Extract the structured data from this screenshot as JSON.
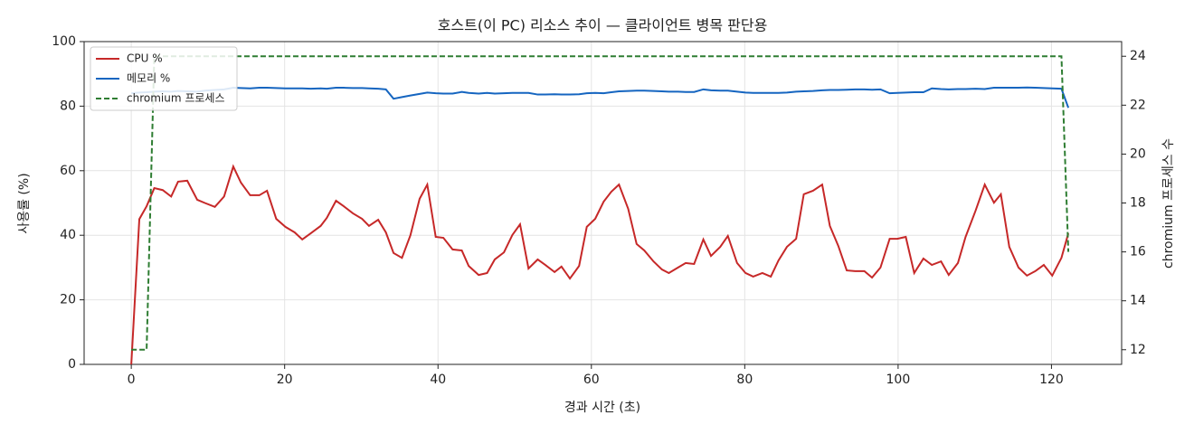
{
  "chart_data": {
    "type": "line",
    "title": "호스트(이 PC) 리소스 추이 — 클라이언트 병목 판단용",
    "x_label": "경과 시간 (초)",
    "y_label": "사용률 (%)",
    "y2_label": "chromium 프로세스 수",
    "xlim": [
      -6.15,
      129.15
    ],
    "xticks": [
      0,
      20,
      40,
      60,
      80,
      100,
      120
    ],
    "ylim": [
      0,
      100
    ],
    "yticks": [
      0,
      20,
      40,
      60,
      80,
      100
    ],
    "y2lim": [
      11.4,
      24.6
    ],
    "y2ticks": [
      12,
      14,
      16,
      18,
      20,
      22,
      24
    ],
    "grid": true,
    "legend": "upper left",
    "x": [
      0,
      1.05,
      2,
      3,
      4.1,
      5.2,
      6.1,
      7.3,
      8.6,
      9.6,
      10.9,
      12.1,
      13.3,
      14.3,
      15.5,
      16.7,
      17.7,
      18.9,
      20.1,
      21.3,
      22.3,
      23.4,
      24.7,
      25.5,
      26.7,
      27.7,
      28.9,
      30.1,
      31,
      32.2,
      33.2,
      34.2,
      35.3,
      36.4,
      37.6,
      38.6,
      39.7,
      40.7,
      41.9,
      43.1,
      44,
      45.3,
      46.4,
      47.4,
      48.6,
      49.7,
      50.7,
      51.8,
      53,
      54,
      55.2,
      56.1,
      57.2,
      58.4,
      59.4,
      60.5,
      61.6,
      62.6,
      63.6,
      64.8,
      65.9,
      66.9,
      68.1,
      69.2,
      70.1,
      71.3,
      72.3,
      73.4,
      74.6,
      75.6,
      76.8,
      77.8,
      79,
      80.1,
      81.1,
      82.3,
      83.4,
      84.4,
      85.5,
      86.7,
      87.7,
      88.9,
      90.1,
      91.1,
      92.2,
      93.3,
      94.4,
      95.6,
      96.6,
      97.7,
      98.9,
      99.9,
      101,
      102.1,
      103.3,
      104.4,
      105.6,
      106.6,
      107.8,
      108.8,
      110.1,
      111.3,
      112.5,
      113.4,
      114.5,
      115.7,
      116.8,
      117.9,
      119,
      120.1,
      121.3,
      122.2
    ],
    "series": [
      {
        "name": "CPU %",
        "color": "#c62828",
        "axis": "y",
        "values": [
          0,
          45,
          49,
          54.6,
          54,
          52,
          56.6,
          56.9,
          51,
          50,
          48.8,
          52,
          61.3,
          56.3,
          52.4,
          52.4,
          53.8,
          45.1,
          42.6,
          40.9,
          38.7,
          40.6,
          42.9,
          45.4,
          50.7,
          49,
          46.8,
          45.1,
          42.9,
          44.8,
          40.9,
          34.5,
          33,
          40,
          51.3,
          55.7,
          39.5,
          39.2,
          35.6,
          35.3,
          30.5,
          27.7,
          28.3,
          32.5,
          34.7,
          40.1,
          43.4,
          29.7,
          32.5,
          30.8,
          28.6,
          30.3,
          26.6,
          30.5,
          42.6,
          45.1,
          50.4,
          53.5,
          55.7,
          48.2,
          37.3,
          35.3,
          31.9,
          29.4,
          28.3,
          30,
          31.4,
          31.1,
          38.7,
          33.6,
          36.4,
          39.8,
          31.4,
          28.3,
          27.2,
          28.3,
          27.2,
          32.2,
          36.4,
          38.9,
          52.7,
          53.8,
          55.7,
          42.9,
          36.7,
          29.1,
          28.9,
          28.9,
          26.9,
          30,
          38.9,
          38.9,
          39.5,
          28.3,
          32.8,
          30.8,
          31.9,
          27.7,
          31.4,
          39.5,
          47.6,
          55.7,
          50.1,
          52.7,
          36.4,
          30,
          27.5,
          28.9,
          30.8,
          27.5,
          33,
          40.6
        ]
      },
      {
        "name": "메모리 %",
        "color": "#1565c0",
        "axis": "y",
        "values": [
          84,
          84.2,
          84.3,
          84.5,
          84.6,
          84.5,
          84.7,
          84.6,
          84.5,
          84.8,
          85,
          85.2,
          85.7,
          85.6,
          85.5,
          85.7,
          85.7,
          85.6,
          85.5,
          85.5,
          85.5,
          85.4,
          85.5,
          85.4,
          85.7,
          85.7,
          85.6,
          85.6,
          85.5,
          85.4,
          85.2,
          82.3,
          82.8,
          83.3,
          83.8,
          84.2,
          84,
          83.9,
          83.9,
          84.4,
          84.1,
          83.9,
          84.1,
          83.9,
          84,
          84.1,
          84.1,
          84.1,
          83.6,
          83.6,
          83.7,
          83.6,
          83.6,
          83.7,
          84,
          84.1,
          84,
          84.3,
          84.6,
          84.7,
          84.8,
          84.8,
          84.7,
          84.6,
          84.5,
          84.5,
          84.4,
          84.4,
          85.2,
          84.9,
          84.8,
          84.8,
          84.5,
          84.2,
          84.1,
          84.1,
          84.1,
          84.1,
          84.2,
          84.5,
          84.6,
          84.7,
          84.9,
          85,
          85,
          85.1,
          85.2,
          85.2,
          85.1,
          85.2,
          84,
          84.1,
          84.2,
          84.3,
          84.3,
          85.5,
          85.3,
          85.2,
          85.3,
          85.3,
          85.4,
          85.3,
          85.7,
          85.7,
          85.7,
          85.7,
          85.8,
          85.7,
          85.6,
          85.5,
          85.4,
          79.5
        ]
      },
      {
        "name": "chromium 프로세스",
        "color": "#2e7d32",
        "axis": "y2",
        "dashed": true,
        "values": [
          12,
          12,
          12,
          24,
          24,
          24,
          24,
          24,
          24,
          24,
          24,
          24,
          24,
          24,
          24,
          24,
          24,
          24,
          24,
          24,
          24,
          24,
          24,
          24,
          24,
          24,
          24,
          24,
          24,
          24,
          24,
          24,
          24,
          24,
          24,
          24,
          24,
          24,
          24,
          24,
          24,
          24,
          24,
          24,
          24,
          24,
          24,
          24,
          24,
          24,
          24,
          24,
          24,
          24,
          24,
          24,
          24,
          24,
          24,
          24,
          24,
          24,
          24,
          24,
          24,
          24,
          24,
          24,
          24,
          24,
          24,
          24,
          24,
          24,
          24,
          24,
          24,
          24,
          24,
          24,
          24,
          24,
          24,
          24,
          24,
          24,
          24,
          24,
          24,
          24,
          24,
          24,
          24,
          24,
          24,
          24,
          24,
          24,
          24,
          24,
          24,
          24,
          24,
          24,
          24,
          24,
          24,
          24,
          24,
          24,
          24,
          16
        ]
      }
    ]
  }
}
